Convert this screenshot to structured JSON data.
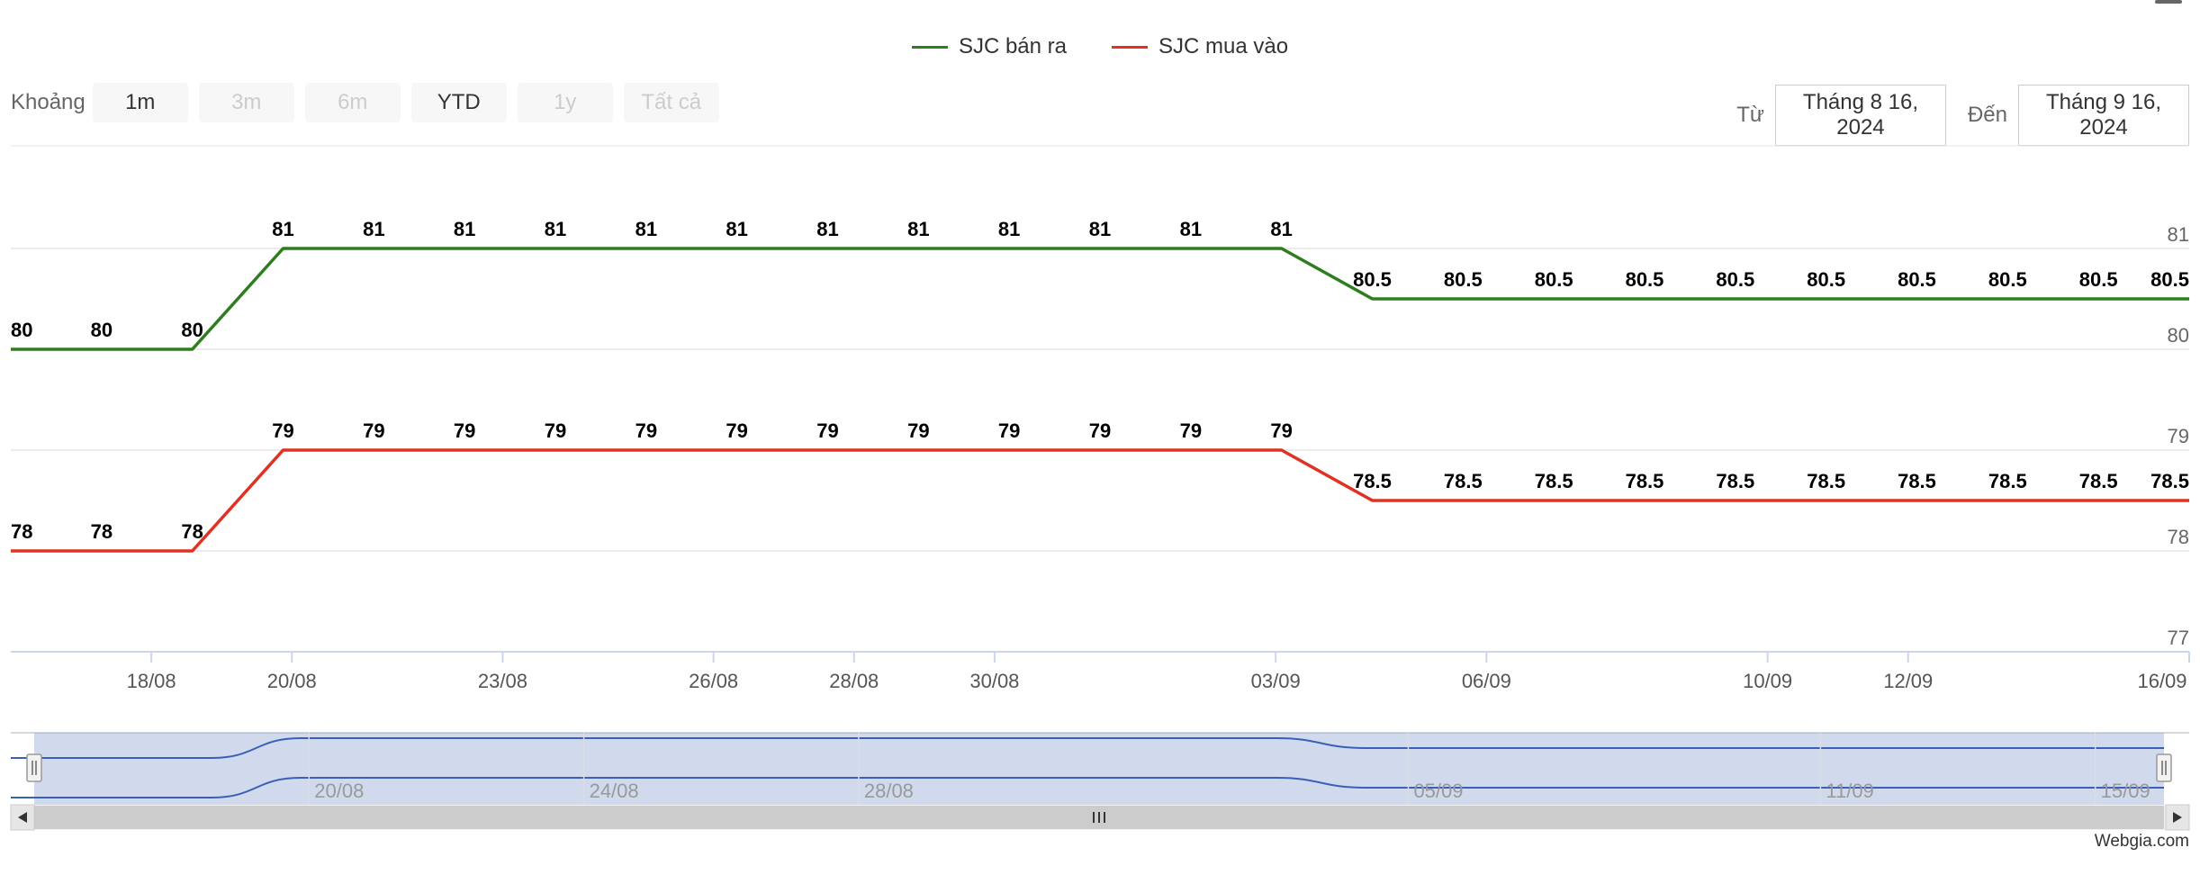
{
  "legend": [
    {
      "label": "SJC bán ra",
      "color": "#2e7d1f"
    },
    {
      "label": "SJC mua vào",
      "color": "#e03223"
    }
  ],
  "range_selector": {
    "label": "Khoảng",
    "buttons": [
      {
        "label": "1m",
        "state": "enabled"
      },
      {
        "label": "3m",
        "state": "disabled"
      },
      {
        "label": "6m",
        "state": "disabled"
      },
      {
        "label": "YTD",
        "state": "enabled"
      },
      {
        "label": "1y",
        "state": "disabled"
      },
      {
        "label": "Tất cả",
        "state": "disabled"
      }
    ]
  },
  "date_range": {
    "from_label": "Từ",
    "from_value": "Tháng 8 16, 2024",
    "to_label": "Đến",
    "to_value": "Tháng 9 16, 2024"
  },
  "chart_data": {
    "type": "line",
    "x": [
      "16/08",
      "17/08",
      "19/08",
      "20/08",
      "21/08",
      "22/08",
      "23/08",
      "24/08",
      "26/08",
      "27/08",
      "28/08",
      "29/08",
      "30/08",
      "31/08",
      "03/09",
      "05/09",
      "06/09",
      "07/09",
      "09/09",
      "10/09",
      "11/09",
      "12/09",
      "13/09",
      "14/09",
      "16/09"
    ],
    "series": [
      {
        "name": "SJC bán ra",
        "color": "#2e7d1f",
        "values": [
          80,
          80,
          80,
          81,
          81,
          81,
          81,
          81,
          81,
          81,
          81,
          81,
          81,
          81,
          81,
          80.5,
          80.5,
          80.5,
          80.5,
          80.5,
          80.5,
          80.5,
          80.5,
          80.5,
          80.5
        ]
      },
      {
        "name": "SJC mua vào",
        "color": "#e03223",
        "values": [
          78,
          78,
          78,
          79,
          79,
          79,
          79,
          79,
          79,
          79,
          79,
          79,
          79,
          79,
          79,
          78.5,
          78.5,
          78.5,
          78.5,
          78.5,
          78.5,
          78.5,
          78.5,
          78.5,
          78.5
        ]
      }
    ],
    "ylim": [
      77,
      81
    ],
    "ytick_labels": [
      "77",
      "78",
      "79",
      "80",
      "81"
    ],
    "xtick_labels": [
      "18/08",
      "20/08",
      "23/08",
      "26/08",
      "28/08",
      "30/08",
      "03/09",
      "06/09",
      "10/09",
      "12/09",
      "16/09"
    ],
    "grid": true,
    "navigator": {
      "tick_labels": [
        "20/08",
        "24/08",
        "28/08",
        "05/09",
        "11/09",
        "15/09"
      ]
    }
  },
  "watermark": "Webgia.com"
}
